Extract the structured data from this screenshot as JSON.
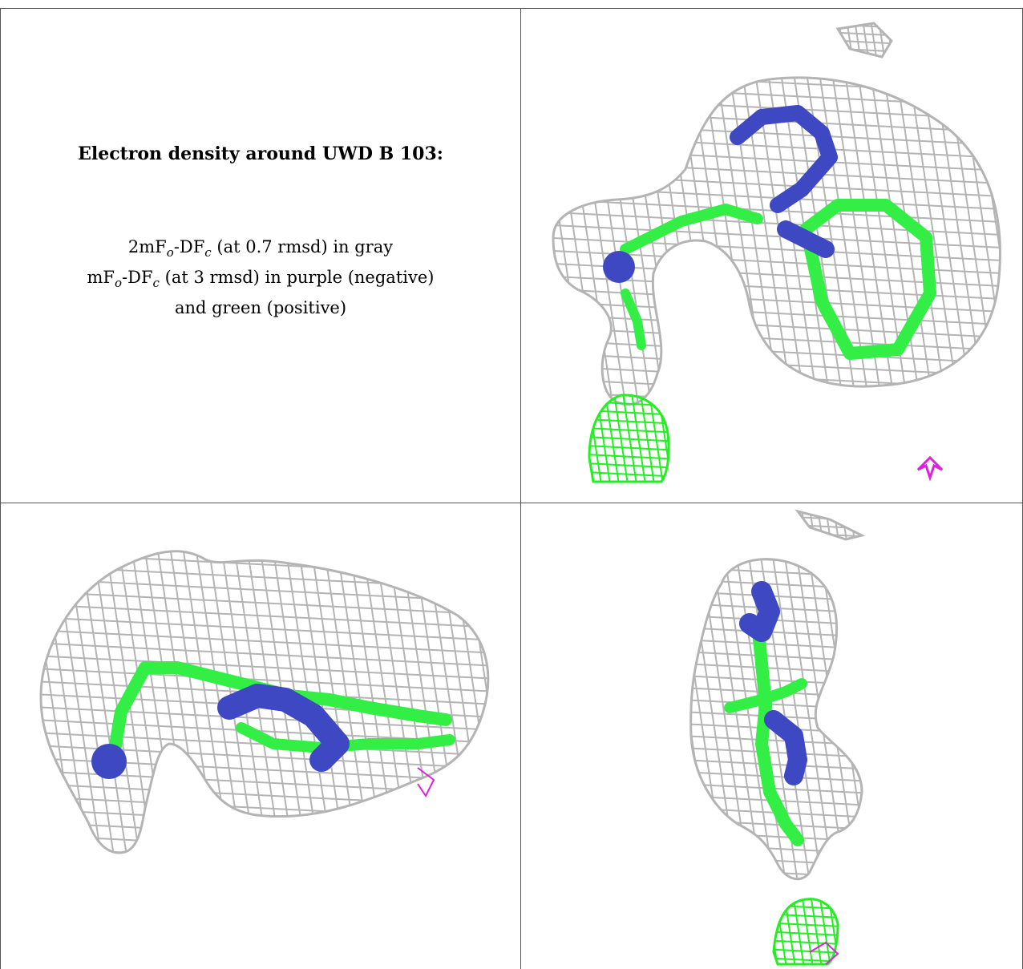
{
  "caption": {
    "title": "Electron density around UWD B 103:",
    "map_2fo": {
      "prefix": "2mF",
      "s1": "o",
      "mid": "-DF",
      "s2": "c",
      "suffix": " (at 0.7 rmsd) in gray"
    },
    "map_fo": {
      "prefix": "mF",
      "s1": "o",
      "mid": "-DF",
      "s2": "c",
      "suffix": " (at 3 rmsd) in purple (negative)"
    },
    "map_fo_cont": "and green (positive)"
  },
  "colors": {
    "mesh_gray": "#b4b4b4",
    "carbon_green": "#33ee44",
    "nitrogen_blue": "#3d48c2",
    "positive_green": "#22ee22",
    "negative_purple": "#dd22dd",
    "grid_line": "#555555"
  },
  "views": [
    "top-view",
    "side-view",
    "end-view"
  ]
}
